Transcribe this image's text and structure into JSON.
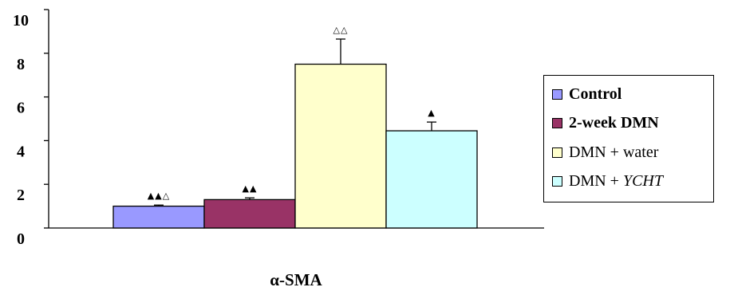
{
  "chart_data": {
    "type": "bar",
    "categories": [
      "α-SMA"
    ],
    "series": [
      {
        "name": "Control",
        "values": [
          1.0
        ],
        "error": [
          0.05
        ],
        "annotation": "▲▲△",
        "color": "#9999ff"
      },
      {
        "name": "2-week DMN",
        "values": [
          1.3
        ],
        "error": [
          0.08
        ],
        "annotation": "▲▲",
        "color": "#993366"
      },
      {
        "name": "DMN + water",
        "values": [
          7.5
        ],
        "error": [
          1.15
        ],
        "annotation": "△△",
        "color": "#ffffcc"
      },
      {
        "name": "DMN + YCHT",
        "values": [
          4.45
        ],
        "error": [
          0.4
        ],
        "annotation": "▲",
        "color": "#ccffff"
      }
    ],
    "ylim": [
      0,
      10
    ],
    "yticks": [
      "0",
      "2",
      "4",
      "6",
      "8",
      "10"
    ],
    "legend_position": "right",
    "grid": false
  },
  "legend": [
    {
      "prefix": "Control",
      "suffix": "",
      "color": "#9999ff"
    },
    {
      "prefix": "2-week DMN",
      "suffix": "",
      "color": "#993366"
    },
    {
      "prefix": "DMN + water",
      "suffix": "",
      "color": "#ffffcc"
    },
    {
      "prefix": "DMN + ",
      "suffix": "YCHT",
      "color": "#ccffff"
    }
  ]
}
